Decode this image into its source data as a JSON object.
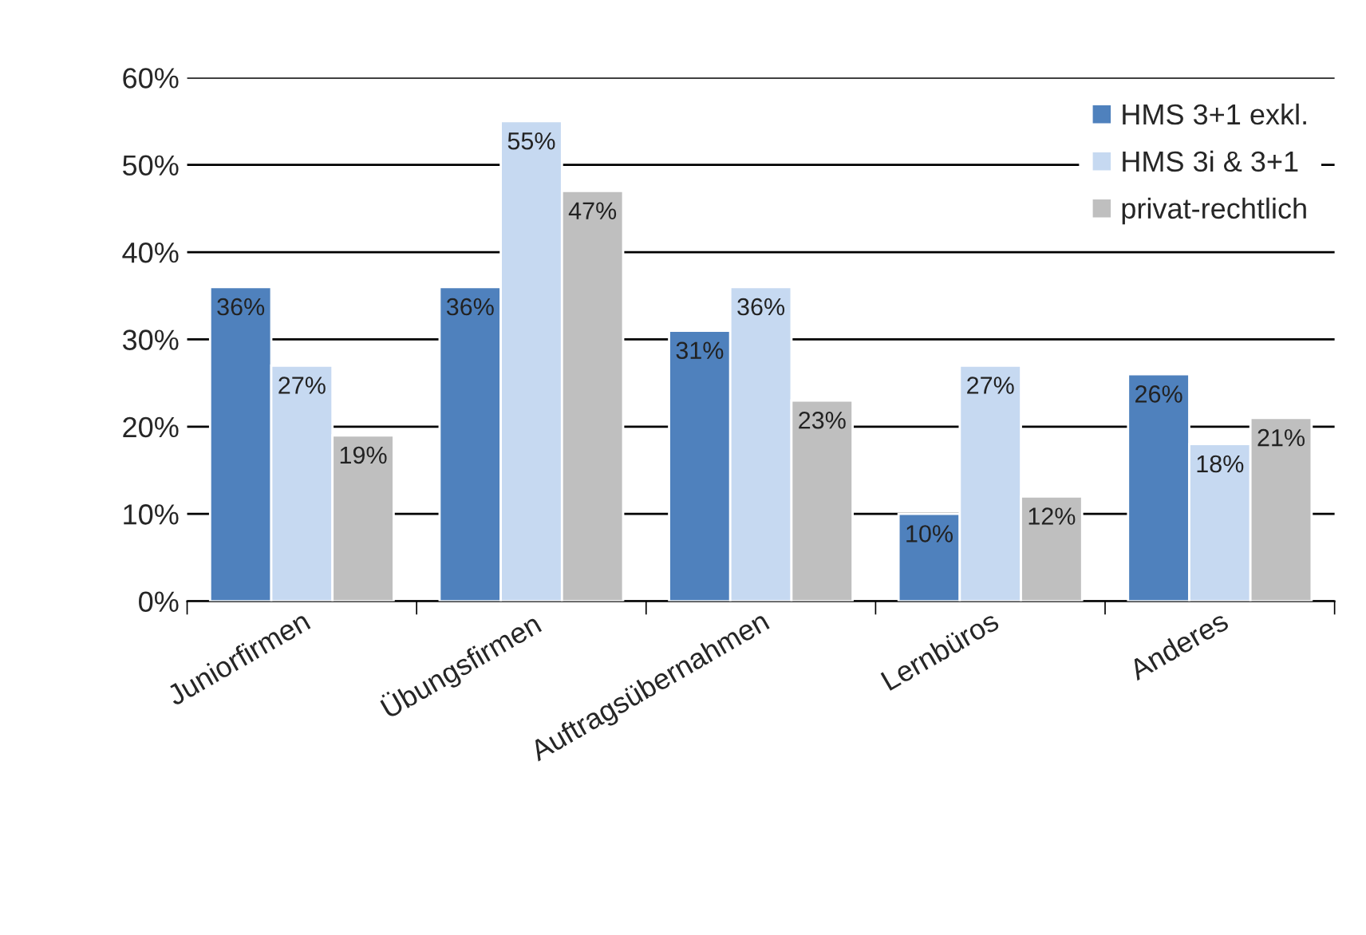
{
  "chart_data": {
    "type": "bar",
    "categories": [
      "Juniorfirmen",
      "Übungsfirmen",
      "Auftragsübernahmen",
      "Lernbüros",
      "Anderes"
    ],
    "series": [
      {
        "name": "HMS 3+1 exkl.",
        "color": "#4f81bd",
        "values": [
          36,
          36,
          31,
          10,
          26
        ],
        "value_labels": [
          "36%",
          "36%",
          "31%",
          "10%",
          "26%"
        ]
      },
      {
        "name": "HMS 3i & 3+1",
        "color": "#c6d9f1",
        "values": [
          27,
          55,
          36,
          27,
          18
        ],
        "value_labels": [
          "27%",
          "55%",
          "36%",
          "27%",
          "18%"
        ]
      },
      {
        "name": "privat-rechtlich",
        "color": "#bfbfbf",
        "values": [
          19,
          47,
          23,
          12,
          21
        ],
        "value_labels": [
          "19%",
          "47%",
          "23%",
          "12%",
          "21%"
        ]
      }
    ],
    "ylim": [
      0,
      60
    ],
    "yticks": [
      {
        "value": 0,
        "label": "0%"
      },
      {
        "value": 10,
        "label": "10%"
      },
      {
        "value": 20,
        "label": "20%"
      },
      {
        "value": 30,
        "label": "30%"
      },
      {
        "value": 40,
        "label": "40%"
      },
      {
        "value": 50,
        "label": "50%"
      },
      {
        "value": 60,
        "label": "60%"
      }
    ],
    "grid": "y",
    "legend": "top right"
  }
}
